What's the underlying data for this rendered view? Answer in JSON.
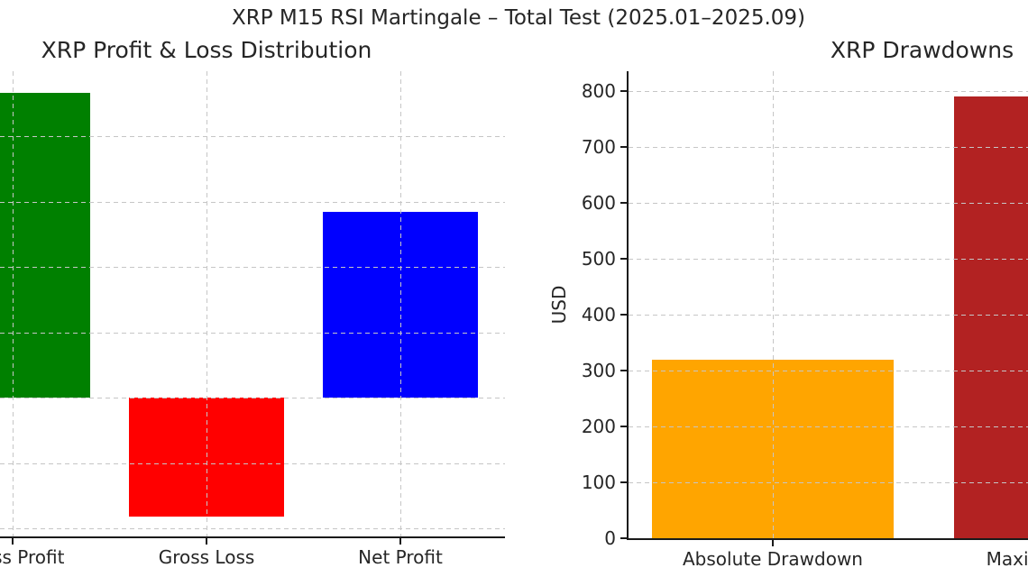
{
  "figure": {
    "suptitle": "XRP M15 RSI Martingale – Total Test (2025.01–2025.09)"
  },
  "chart_data": [
    {
      "type": "bar",
      "title": "XRP Profit & Loss Distribution",
      "categories": [
        "Gross Profit",
        "Gross Loss",
        "Net Profit"
      ],
      "values": [
        2330,
        -910,
        1420
      ],
      "colors": [
        "#008000",
        "#ff0000",
        "#0000ff"
      ],
      "xlabel": "",
      "ylabel": "",
      "ylim": [
        -1060,
        2495
      ],
      "ytick_labels_visible": false,
      "ygrid_values": [
        -1000,
        -500,
        0,
        500,
        1000,
        1500,
        2000
      ],
      "grid": "dashed, horizontal and vertical, drawn above bars",
      "legend": "none"
    },
    {
      "type": "bar",
      "title": "XRP Drawdowns",
      "categories": [
        "Absolute Drawdown",
        "Maximal Drawdown"
      ],
      "values": [
        320,
        790
      ],
      "colors": [
        "#ffa500",
        "#b22222"
      ],
      "xlabel": "",
      "ylabel": "USD",
      "ylim": [
        0,
        835
      ],
      "yticks": [
        0,
        100,
        200,
        300,
        400,
        500,
        600,
        700,
        800
      ],
      "ygrid_values": [
        0,
        100,
        200,
        300,
        400,
        500,
        600,
        700,
        800
      ],
      "grid": "dashed, horizontal and vertical, drawn above bars",
      "legend": "none"
    }
  ]
}
